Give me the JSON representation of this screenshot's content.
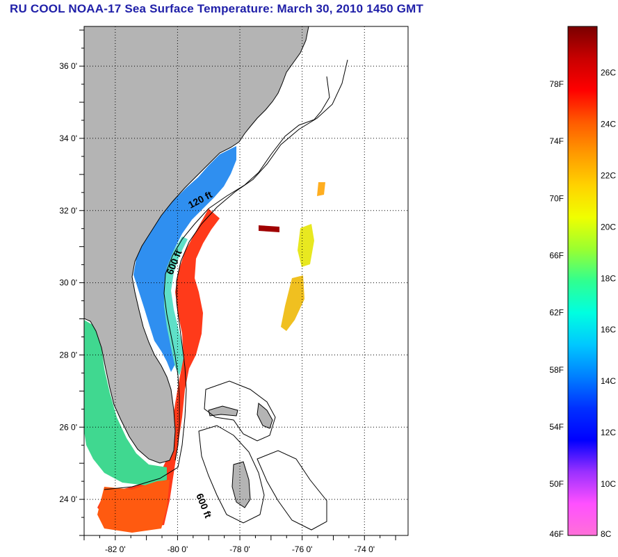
{
  "title": "RU COOL  NOAA-17  Sea Surface Temperature:  March 30, 2010 1450 GMT",
  "map": {
    "lon_range": [
      -83,
      -72.6
    ],
    "lat_range": [
      23,
      37.1
    ],
    "lat_ticks": [
      {
        "value": 36,
        "label": "36 0'"
      },
      {
        "value": 34,
        "label": "34 0'"
      },
      {
        "value": 32,
        "label": "32 0'"
      },
      {
        "value": 30,
        "label": "30 0'"
      },
      {
        "value": 28,
        "label": "28 0'"
      },
      {
        "value": 26,
        "label": "26 0'"
      },
      {
        "value": 24,
        "label": "24 0'"
      }
    ],
    "lon_ticks": [
      {
        "value": -82,
        "label": "-82 0'"
      },
      {
        "value": -80,
        "label": "-80 0'"
      },
      {
        "value": -78,
        "label": "-78 0'"
      },
      {
        "value": -76,
        "label": "-76 0'"
      },
      {
        "value": -74,
        "label": "-74 0'"
      }
    ],
    "isobath_labels": {
      "shelf_120": "120 ft",
      "shelf_600_north": "600 ft",
      "shelf_600_south": "600 ft"
    },
    "land_color": "#b4b4b4",
    "grid": true
  },
  "colorbar": {
    "fahrenheit_labels": [
      "78F",
      "74F",
      "70F",
      "66F",
      "62F",
      "58F",
      "54F",
      "50F",
      "46F"
    ],
    "celsius_labels": [
      "26C",
      "24C",
      "22C",
      "20C",
      "18C",
      "16C",
      "14C",
      "12C",
      "10C",
      "8C"
    ],
    "colors_top_to_bottom": [
      "#7a0000",
      "#c80000",
      "#ff0000",
      "#ff5a00",
      "#ff9a00",
      "#ffd200",
      "#f0ff00",
      "#9aff30",
      "#30ff90",
      "#00ffe0",
      "#00c8ff",
      "#0080ff",
      "#0030ff",
      "#0000ff",
      "#9a30ff",
      "#ff50ff",
      "#ff70d8"
    ]
  }
}
